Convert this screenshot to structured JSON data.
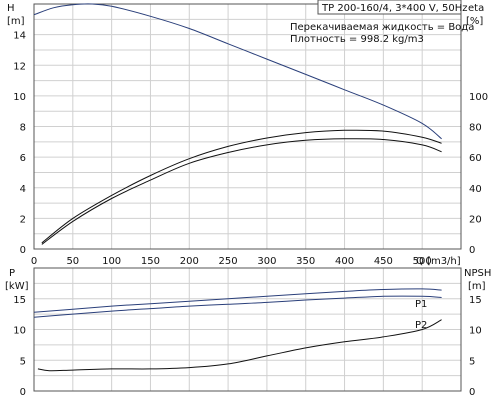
{
  "title": "TP 200-160/4, 3*400 V, 50Hz",
  "info": {
    "liquid": "Перекачиваемая жидкость = Вода",
    "density": "Плотность = 998.2 kg/m3"
  },
  "colors": {
    "head_curve": "#2a3f7a",
    "curve": "#111111",
    "grid": "#d0d0d0",
    "frame": "#555555",
    "label_blue": "#1a3a9a"
  },
  "chart_data": [
    {
      "type": "line",
      "name": "upper",
      "xlabel": "Q [m3/h]",
      "xlim": [
        0,
        550
      ],
      "xticks": [
        0,
        50,
        100,
        150,
        200,
        250,
        300,
        350,
        400,
        450,
        500
      ],
      "y_left": {
        "label_top": "H",
        "label_bottom": "[m]",
        "lim": [
          0,
          16
        ],
        "ticks": [
          0,
          2,
          4,
          6,
          8,
          10,
          12,
          14
        ]
      },
      "y_right": {
        "label_top": "eta",
        "label_bottom": "[%]",
        "lim": [
          0,
          160
        ],
        "ticks": [
          0,
          20,
          40,
          60,
          80,
          100
        ]
      },
      "series": [
        {
          "id": "H",
          "axis": "left",
          "x": [
            0,
            25,
            50,
            75,
            100,
            150,
            200,
            250,
            300,
            350,
            400,
            450,
            500,
            525
          ],
          "y": [
            15.3,
            15.75,
            15.95,
            16.0,
            15.85,
            15.2,
            14.4,
            13.4,
            12.4,
            11.4,
            10.4,
            9.4,
            8.2,
            7.2
          ]
        },
        {
          "id": "eta_upper",
          "axis": "right",
          "x": [
            10,
            50,
            100,
            150,
            200,
            250,
            300,
            350,
            400,
            450,
            500,
            525
          ],
          "y": [
            4,
            20,
            35,
            48,
            59,
            67,
            72.5,
            76,
            77.5,
            77,
            73,
            69
          ]
        },
        {
          "id": "eta_lower",
          "axis": "right",
          "x": [
            10,
            50,
            100,
            150,
            200,
            250,
            300,
            350,
            400,
            450,
            500,
            525
          ],
          "y": [
            3,
            18,
            33,
            45,
            56,
            63,
            68,
            71,
            72,
            71.5,
            68,
            63.5
          ]
        }
      ]
    },
    {
      "type": "line",
      "name": "lower",
      "xlim": [
        0,
        550
      ],
      "y_left": {
        "label_top": "P",
        "label_bottom": "[kW]",
        "lim": [
          0,
          20
        ],
        "ticks": [
          0,
          5,
          10,
          15
        ]
      },
      "y_right": {
        "label_top": "NPSH",
        "label_bottom": "[m]",
        "lim": [
          0,
          20
        ],
        "ticks": [
          0,
          5,
          10,
          15
        ]
      },
      "series": [
        {
          "id": "P1",
          "name": "P1",
          "axis": "left",
          "x": [
            0,
            50,
            100,
            150,
            200,
            250,
            300,
            350,
            400,
            450,
            500,
            525
          ],
          "y": [
            12.8,
            13.3,
            13.8,
            14.2,
            14.6,
            15.0,
            15.4,
            15.8,
            16.2,
            16.5,
            16.6,
            16.4
          ]
        },
        {
          "id": "P2",
          "name": "P2",
          "axis": "left",
          "x": [
            0,
            50,
            100,
            150,
            200,
            250,
            300,
            350,
            400,
            450,
            500,
            525
          ],
          "y": [
            12.0,
            12.5,
            13.0,
            13.4,
            13.8,
            14.1,
            14.4,
            14.8,
            15.1,
            15.4,
            15.4,
            15.2
          ]
        },
        {
          "id": "NPSH",
          "axis": "right",
          "x": [
            5,
            20,
            50,
            100,
            150,
            200,
            250,
            300,
            350,
            400,
            450,
            500,
            525
          ],
          "y": [
            3.6,
            3.3,
            3.4,
            3.6,
            3.6,
            3.8,
            4.4,
            5.7,
            7.0,
            8.0,
            8.8,
            10.0,
            11.6
          ]
        }
      ]
    }
  ]
}
